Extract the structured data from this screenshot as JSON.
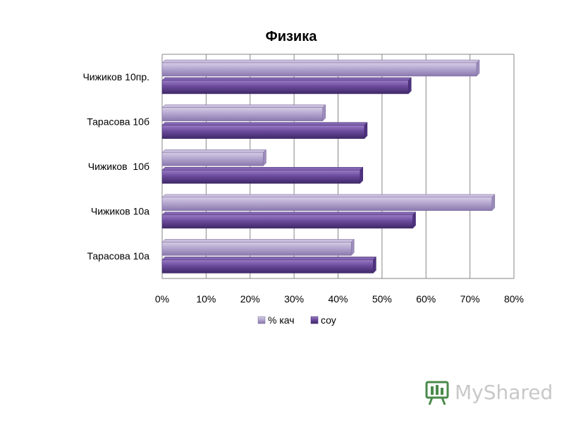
{
  "chart_data": {
    "type": "bar",
    "orientation": "horizontal",
    "title": "Физика",
    "categories": [
      "Чижиков 10пр.",
      "Тарасова 10б",
      "Чижиков  10б",
      "Чижиков 10а",
      "Тарасова 10а"
    ],
    "series": [
      {
        "name": "% кач",
        "values": [
          0.715,
          0.365,
          0.23,
          0.75,
          0.43
        ],
        "color": "#a898c4"
      },
      {
        "name": "соу",
        "values": [
          0.56,
          0.46,
          0.45,
          0.57,
          0.48
        ],
        "color": "#6b4a9c"
      }
    ],
    "xlim": [
      0,
      0.8
    ],
    "x_ticks": [
      "0%",
      "10%",
      "20%",
      "30%",
      "40%",
      "50%",
      "60%",
      "70%",
      "80%"
    ],
    "grid": true,
    "legend_position": "bottom",
    "xlabel": "",
    "ylabel": ""
  },
  "watermark": {
    "text": "MyShared"
  }
}
